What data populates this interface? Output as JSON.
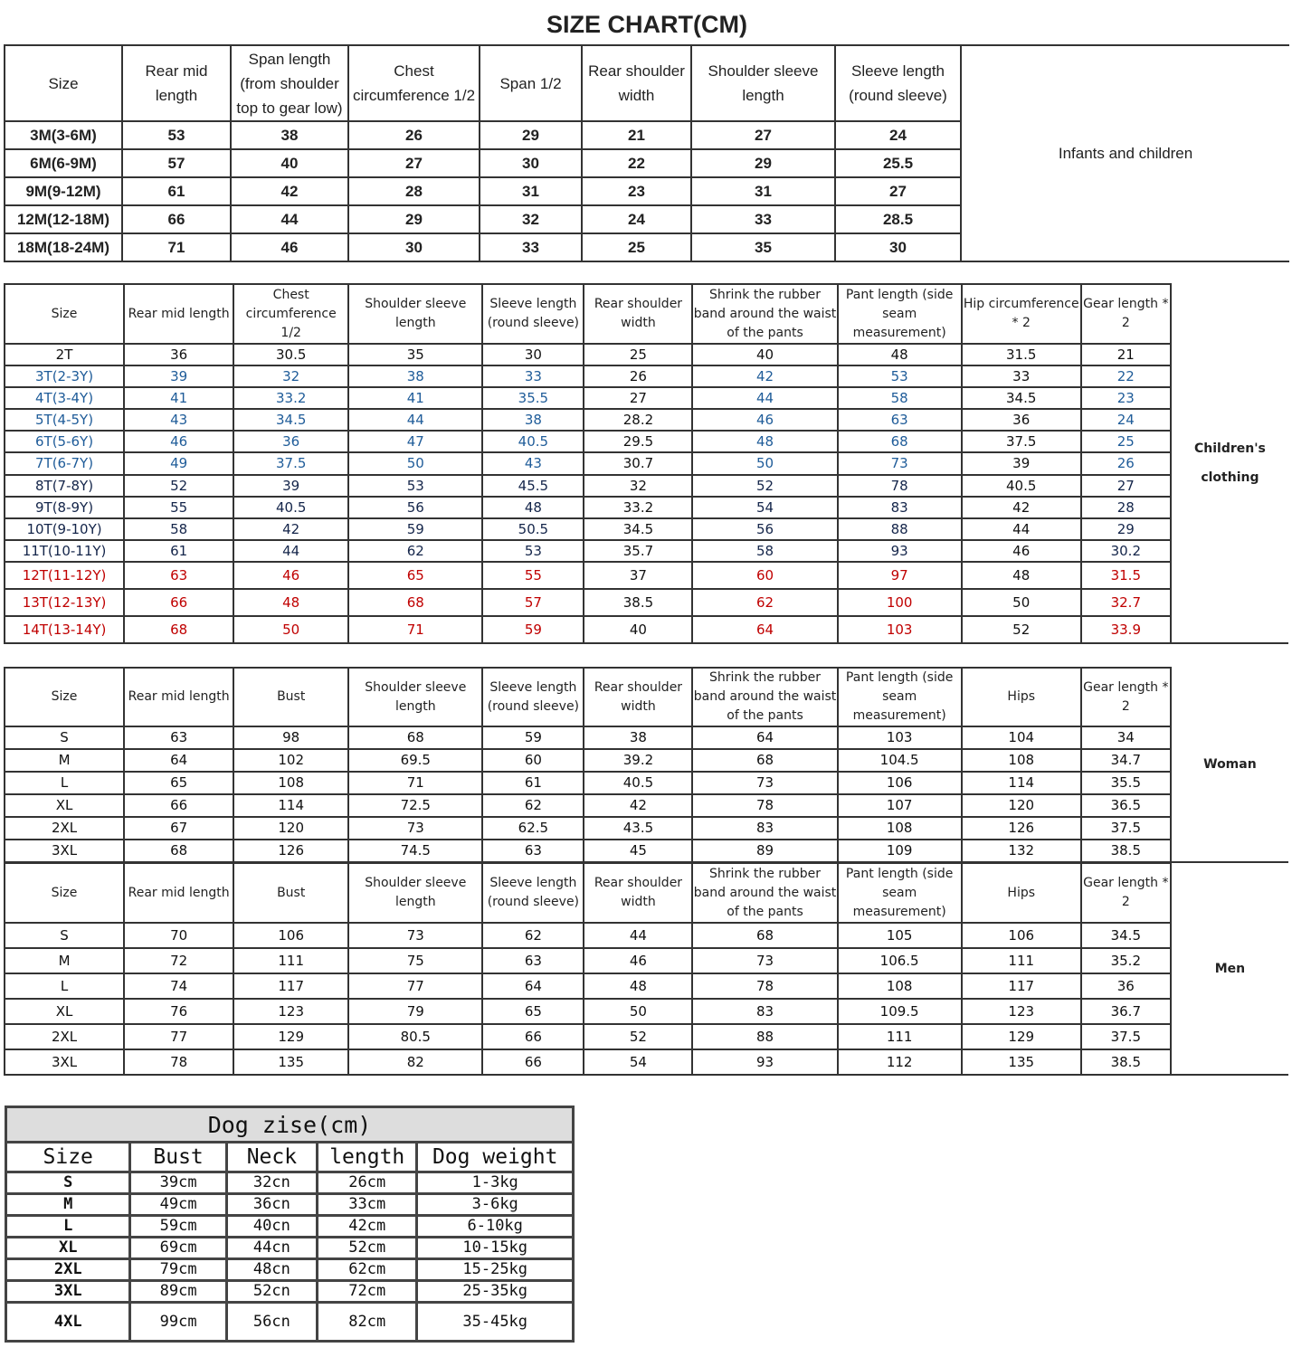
{
  "infant": {
    "title": "SIZE CHART(CM)",
    "label": "Infants and children",
    "headers": [
      "Size",
      "Rear mid length",
      "Span length (from shoulder top to gear low)",
      "Chest circumference 1/2",
      "Span 1/2",
      "Rear shoulder width",
      "Shoulder sleeve length",
      "Sleeve length (round sleeve)"
    ],
    "rows": [
      [
        "3M(3-6M)",
        "53",
        "38",
        "26",
        "29",
        "21",
        "27",
        "24"
      ],
      [
        "6M(6-9M)",
        "57",
        "40",
        "27",
        "30",
        "22",
        "29",
        "25.5"
      ],
      [
        "9M(9-12M)",
        "61",
        "42",
        "28",
        "31",
        "23",
        "31",
        "27"
      ],
      [
        "12M(12-18M)",
        "66",
        "44",
        "29",
        "32",
        "24",
        "33",
        "28.5"
      ],
      [
        "18M(18-24M)",
        "71",
        "46",
        "30",
        "33",
        "25",
        "35",
        "30"
      ]
    ]
  },
  "children": {
    "label": "Children's clothing",
    "headers": [
      "Size",
      "Rear mid length",
      "Chest circumference 1/2",
      "Shoulder sleeve length",
      "Sleeve length (round sleeve)",
      "Rear shoulder width",
      "Shrink the rubber band around the waist of the pants",
      "Pant length (side seam measurement)",
      "Hip circumference * 2",
      "Gear length * 2"
    ],
    "row_colors": {
      "black": "#111111",
      "blue": "#1f5c99",
      "navy": "#14254a",
      "red": "#c00000"
    },
    "rows": [
      {
        "tone": "black",
        "cells": [
          "2T",
          "36",
          "30.5",
          "35",
          "30",
          "25",
          "40",
          "48",
          "31.5",
          "21"
        ]
      },
      {
        "tone": "blue",
        "cells": [
          "3T(2-3Y)",
          "39",
          "32",
          "38",
          "33",
          "26",
          "42",
          "53",
          "33",
          "22"
        ]
      },
      {
        "tone": "blue",
        "cells": [
          "4T(3-4Y)",
          "41",
          "33.2",
          "41",
          "35.5",
          "27",
          "44",
          "58",
          "34.5",
          "23"
        ]
      },
      {
        "tone": "blue",
        "cells": [
          "5T(4-5Y)",
          "43",
          "34.5",
          "44",
          "38",
          "28.2",
          "46",
          "63",
          "36",
          "24"
        ]
      },
      {
        "tone": "blue",
        "cells": [
          "6T(5-6Y)",
          "46",
          "36",
          "47",
          "40.5",
          "29.5",
          "48",
          "68",
          "37.5",
          "25"
        ]
      },
      {
        "tone": "blue",
        "cells": [
          "7T(6-7Y)",
          "49",
          "37.5",
          "50",
          "43",
          "30.7",
          "50",
          "73",
          "39",
          "26"
        ]
      },
      {
        "tone": "navy",
        "cells": [
          "8T(7-8Y)",
          "52",
          "39",
          "53",
          "45.5",
          "32",
          "52",
          "78",
          "40.5",
          "27"
        ]
      },
      {
        "tone": "navy",
        "cells": [
          "9T(8-9Y)",
          "55",
          "40.5",
          "56",
          "48",
          "33.2",
          "54",
          "83",
          "42",
          "28"
        ]
      },
      {
        "tone": "navy",
        "cells": [
          "10T(9-10Y)",
          "58",
          "42",
          "59",
          "50.5",
          "34.5",
          "56",
          "88",
          "44",
          "29"
        ]
      },
      {
        "tone": "navy",
        "cells": [
          "11T(10-11Y)",
          "61",
          "44",
          "62",
          "53",
          "35.7",
          "58",
          "93",
          "46",
          "30.2"
        ]
      },
      {
        "tone": "red",
        "cells": [
          "12T(11-12Y)",
          "63",
          "46",
          "65",
          "55",
          "37",
          "60",
          "97",
          "48",
          "31.5"
        ]
      },
      {
        "tone": "red",
        "cells": [
          "13T(12-13Y)",
          "66",
          "48",
          "68",
          "57",
          "38.5",
          "62",
          "100",
          "50",
          "32.7"
        ]
      },
      {
        "tone": "red",
        "cells": [
          "14T(13-14Y)",
          "68",
          "50",
          "71",
          "59",
          "40",
          "64",
          "103",
          "52",
          "33.9"
        ]
      }
    ]
  },
  "woman": {
    "label": "Woman",
    "headers": [
      "Size",
      "Rear mid length",
      "Bust",
      "Shoulder sleeve length",
      "Sleeve length (round sleeve)",
      "Rear shoulder width",
      "Shrink the rubber band around the waist of the pants",
      "Pant length (side seam measurement)",
      "Hips",
      "Gear length * 2"
    ],
    "rows": [
      [
        "S",
        "63",
        "98",
        "68",
        "59",
        "38",
        "64",
        "103",
        "104",
        "34"
      ],
      [
        "M",
        "64",
        "102",
        "69.5",
        "60",
        "39.2",
        "68",
        "104.5",
        "108",
        "34.7"
      ],
      [
        "L",
        "65",
        "108",
        "71",
        "61",
        "40.5",
        "73",
        "106",
        "114",
        "35.5"
      ],
      [
        "XL",
        "66",
        "114",
        "72.5",
        "62",
        "42",
        "78",
        "107",
        "120",
        "36.5"
      ],
      [
        "2XL",
        "67",
        "120",
        "73",
        "62.5",
        "43.5",
        "83",
        "108",
        "126",
        "37.5"
      ],
      [
        "3XL",
        "68",
        "126",
        "74.5",
        "63",
        "45",
        "89",
        "109",
        "132",
        "38.5"
      ]
    ]
  },
  "men": {
    "label": "Men",
    "headers": [
      "Size",
      "Rear mid length",
      "Bust",
      "Shoulder sleeve length",
      "Sleeve length (round sleeve)",
      "Rear shoulder width",
      "Shrink the rubber band around the waist of the pants",
      "Pant length (side seam measurement)",
      "Hips",
      "Gear length * 2"
    ],
    "rows": [
      [
        "S",
        "70",
        "106",
        "73",
        "62",
        "44",
        "68",
        "105",
        "106",
        "34.5"
      ],
      [
        "M",
        "72",
        "111",
        "75",
        "63",
        "46",
        "73",
        "106.5",
        "111",
        "35.2"
      ],
      [
        "L",
        "74",
        "117",
        "77",
        "64",
        "48",
        "78",
        "108",
        "117",
        "36"
      ],
      [
        "XL",
        "76",
        "123",
        "79",
        "65",
        "50",
        "83",
        "109.5",
        "123",
        "36.7"
      ],
      [
        "2XL",
        "77",
        "129",
        "80.5",
        "66",
        "52",
        "88",
        "111",
        "129",
        "37.5"
      ],
      [
        "3XL",
        "78",
        "135",
        "82",
        "66",
        "54",
        "93",
        "112",
        "135",
        "38.5"
      ]
    ]
  },
  "dog": {
    "title": "Dog zise(cm)",
    "headers": [
      "Size",
      "Bust",
      "Neck",
      "length",
      "Dog weight"
    ],
    "rows": [
      [
        "S",
        "39cm",
        "32cn",
        "26cm",
        "1-3kg"
      ],
      [
        "M",
        "49cm",
        "36cn",
        "33cm",
        "3-6kg"
      ],
      [
        "L",
        "59cm",
        "40cn",
        "42cm",
        "6-10kg"
      ],
      [
        "XL",
        "69cm",
        "44cn",
        "52cm",
        "10-15kg"
      ],
      [
        "2XL",
        "79cm",
        "48cn",
        "62cm",
        "15-25kg"
      ],
      [
        "3XL",
        "89cm",
        "52cn",
        "72cm",
        "25-35kg"
      ],
      [
        "4XL",
        "99cm",
        "56cn",
        "82cm",
        "35-45kg"
      ]
    ]
  }
}
